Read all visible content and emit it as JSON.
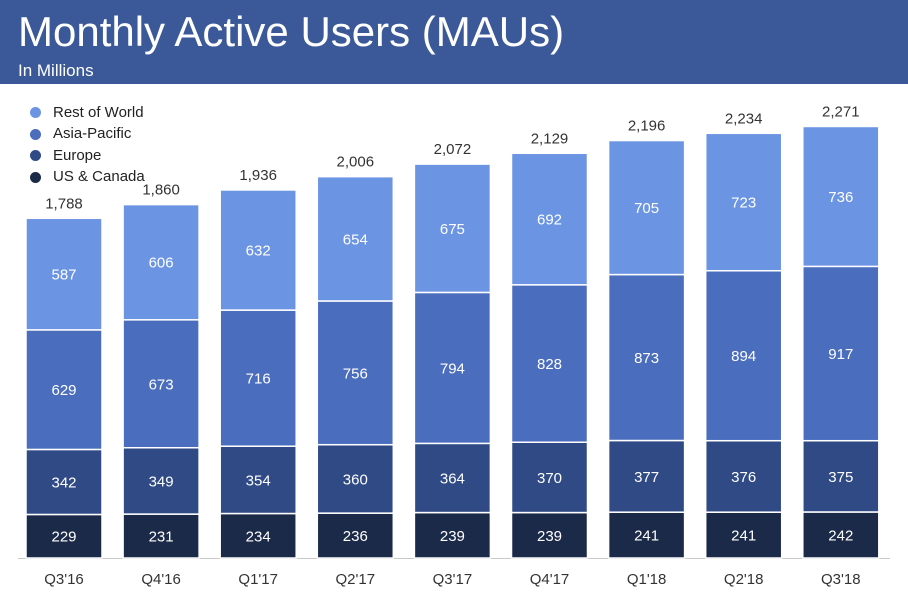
{
  "header": {
    "title": "Monthly Active Users (MAUs)",
    "subtitle": "In Millions"
  },
  "chart_data": {
    "type": "bar",
    "stacked": true,
    "title": "Monthly Active Users (MAUs)",
    "subtitle": "In Millions",
    "categories": [
      "Q3'16",
      "Q4'16",
      "Q1'17",
      "Q2'17",
      "Q3'17",
      "Q4'17",
      "Q1'18",
      "Q2'18",
      "Q3'18"
    ],
    "series": [
      {
        "name": "US & Canada",
        "color": "#1c2a4a",
        "values": [
          229,
          231,
          234,
          236,
          239,
          239,
          241,
          241,
          242
        ]
      },
      {
        "name": "Europe",
        "color": "#2f4a85",
        "values": [
          342,
          349,
          354,
          360,
          364,
          370,
          377,
          376,
          375
        ]
      },
      {
        "name": "Asia-Pacific",
        "color": "#4a6dbd",
        "values": [
          629,
          673,
          716,
          756,
          794,
          828,
          873,
          894,
          917
        ]
      },
      {
        "name": "Rest of World",
        "color": "#6b94e3",
        "values": [
          587,
          606,
          632,
          654,
          675,
          692,
          705,
          723,
          736
        ]
      }
    ],
    "totals": [
      "1,788",
      "1,860",
      "1,936",
      "2,006",
      "2,072",
      "2,129",
      "2,196",
      "2,234",
      "2,271"
    ],
    "legend_order": [
      "Rest of World",
      "Asia-Pacific",
      "Europe",
      "US & Canada"
    ],
    "legend_position": "top-left",
    "grid": false,
    "xlabel": "",
    "ylabel": ""
  }
}
